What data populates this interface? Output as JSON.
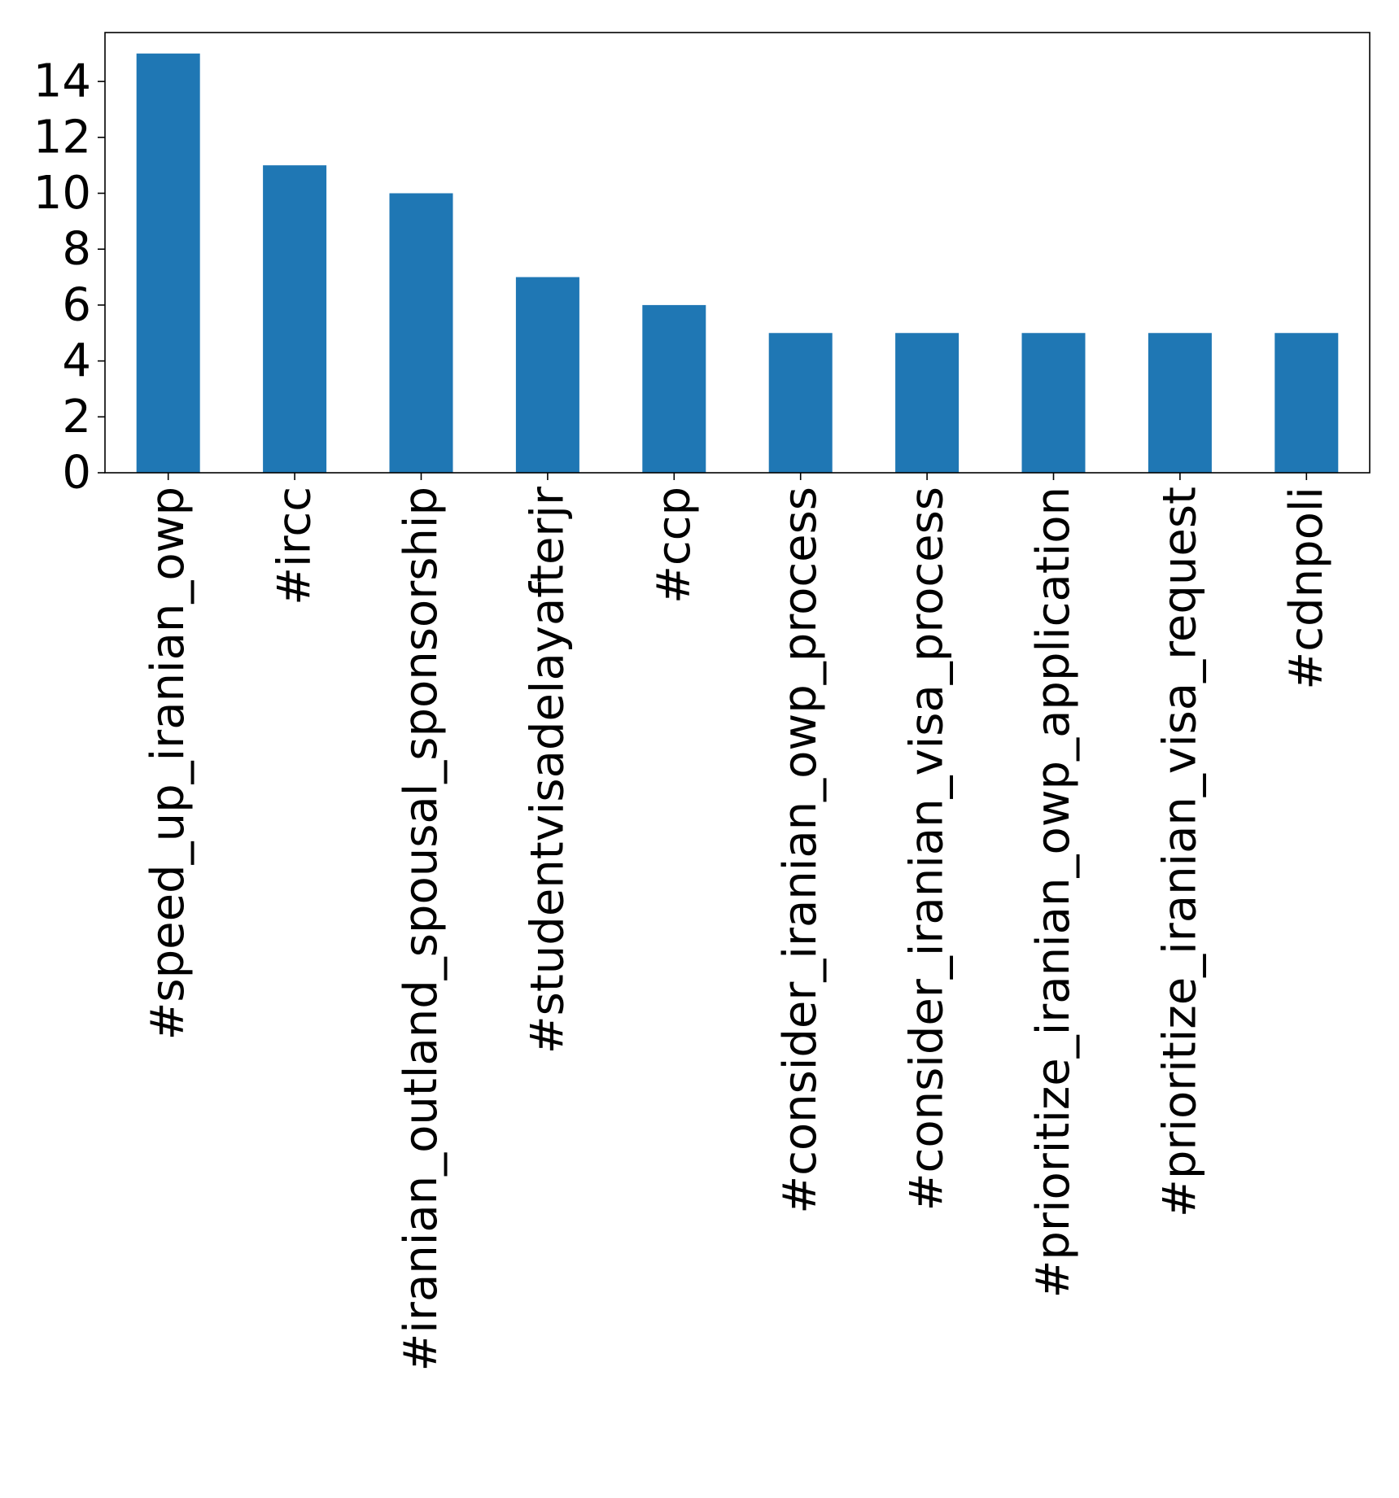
{
  "chart_data": {
    "type": "bar",
    "categories": [
      "#speed_up_iranian_owp",
      "#ircc",
      "#iranian_outland_spousal_sponsorship",
      "#studentvisadelayafterjr",
      "#ccp",
      "#consider_iranian_owp_process",
      "#consider_iranian_visa_process",
      "#prioritize_iranian_owp_application",
      "#prioritize_iranian_visa_request",
      "#cdnpoli"
    ],
    "values": [
      15,
      11,
      10,
      7,
      6,
      5,
      5,
      5,
      5,
      5
    ],
    "title": "",
    "xlabel": "",
    "ylabel": "",
    "ylim": [
      0,
      15.75
    ],
    "yticks": [
      0,
      2,
      4,
      6,
      8,
      10,
      12,
      14
    ],
    "grid": false,
    "legend": "none",
    "bar_color": "#1f77b4",
    "axis_color": "#000000"
  }
}
